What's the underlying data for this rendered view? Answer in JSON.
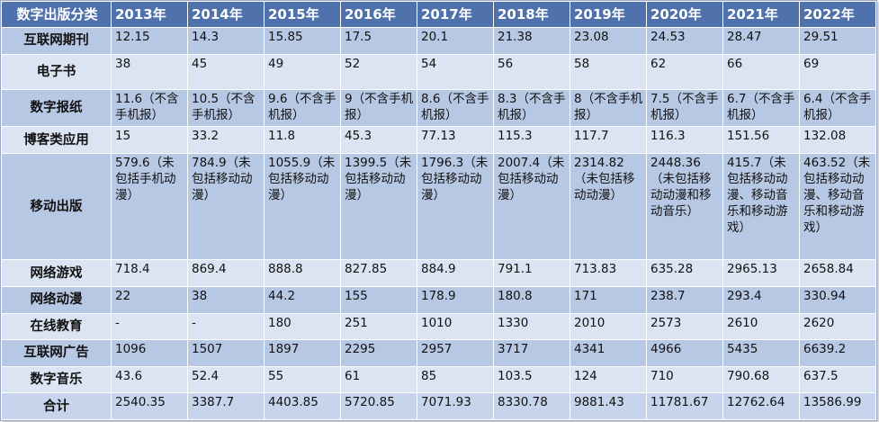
{
  "table": {
    "header": [
      "数字出版分类",
      "2013年",
      "2014年",
      "2015年",
      "2016年",
      "2017年",
      "2018年",
      "2019年",
      "2020年",
      "2021年",
      "2022年"
    ],
    "rows": [
      {
        "label": "互联网期刊",
        "cells": [
          "12.15",
          "14.3",
          "15.85",
          "17.5",
          "20.1",
          "21.38",
          "23.08",
          "24.53",
          "28.47",
          "29.51"
        ]
      },
      {
        "label": "电子书",
        "cells": [
          "38",
          "45",
          "49",
          "52",
          "54",
          "56",
          "58",
          "62",
          "66",
          "69"
        ]
      },
      {
        "label": "数字报纸",
        "cells": [
          "11.6（不含手机报）",
          "10.5（不含手机报）",
          "9.6（不含手机报）",
          "9（不含手机报）",
          "8.6（不含手机报）",
          "8.3（不含手机报）",
          "8（不含手机报）",
          "7.5（不含手机报）",
          "6.7（不含手机报）",
          "6.4（不含手机报）"
        ]
      },
      {
        "label": "博客类应用",
        "cells": [
          "15",
          "33.2",
          "11.8",
          "45.3",
          "77.13",
          "115.3",
          "117.7",
          "116.3",
          "151.56",
          "132.08"
        ]
      },
      {
        "label": "移动出版",
        "cells": [
          "579.6（未包括手机动漫）",
          "784.9（未包括移动动漫）",
          "1055.9（未包括移动动漫）",
          "1399.5（未包括移动动漫）",
          "1796.3（未包括移动动漫）",
          "2007.4（未包括移动动漫）",
          "2314.82（未包括移动动漫）",
          "2448.36（未包括移动动漫和移动音乐）",
          "415.7（未包括移动动漫、移动音乐和移动游戏）",
          "463.52（未包括移动动漫、移动音乐和移动游戏）"
        ]
      },
      {
        "label": "网络游戏",
        "cells": [
          "718.4",
          "869.4",
          "888.8",
          "827.85",
          "884.9",
          "791.1",
          "713.83",
          "635.28",
          "2965.13",
          "2658.84"
        ]
      },
      {
        "label": "网络动漫",
        "cells": [
          "22",
          "38",
          "44.2",
          "155",
          "178.9",
          "180.8",
          "171",
          "238.7",
          "293.4",
          "330.94"
        ]
      },
      {
        "label": "在线教育",
        "cells": [
          "-",
          "-",
          "180",
          "251",
          "1010",
          "1330",
          "2010",
          "2573",
          "2610",
          "2620"
        ]
      },
      {
        "label": "互联网广告",
        "cells": [
          "1096",
          "1507",
          "1897",
          "2295",
          "2957",
          "3717",
          "4341",
          "4966",
          "5435",
          "6639.2"
        ]
      },
      {
        "label": "数字音乐",
        "cells": [
          "43.6",
          "52.4",
          "55",
          "61",
          "85",
          "103.5",
          "124",
          "710",
          "790.68",
          "637.5"
        ]
      },
      {
        "label": "合计",
        "cells": [
          "2540.35",
          "3387.7",
          "4403.85",
          "5720.85",
          "7071.93",
          "8330.78",
          "9881.43",
          "11781.67",
          "12762.64",
          "13586.99"
        ]
      }
    ]
  }
}
